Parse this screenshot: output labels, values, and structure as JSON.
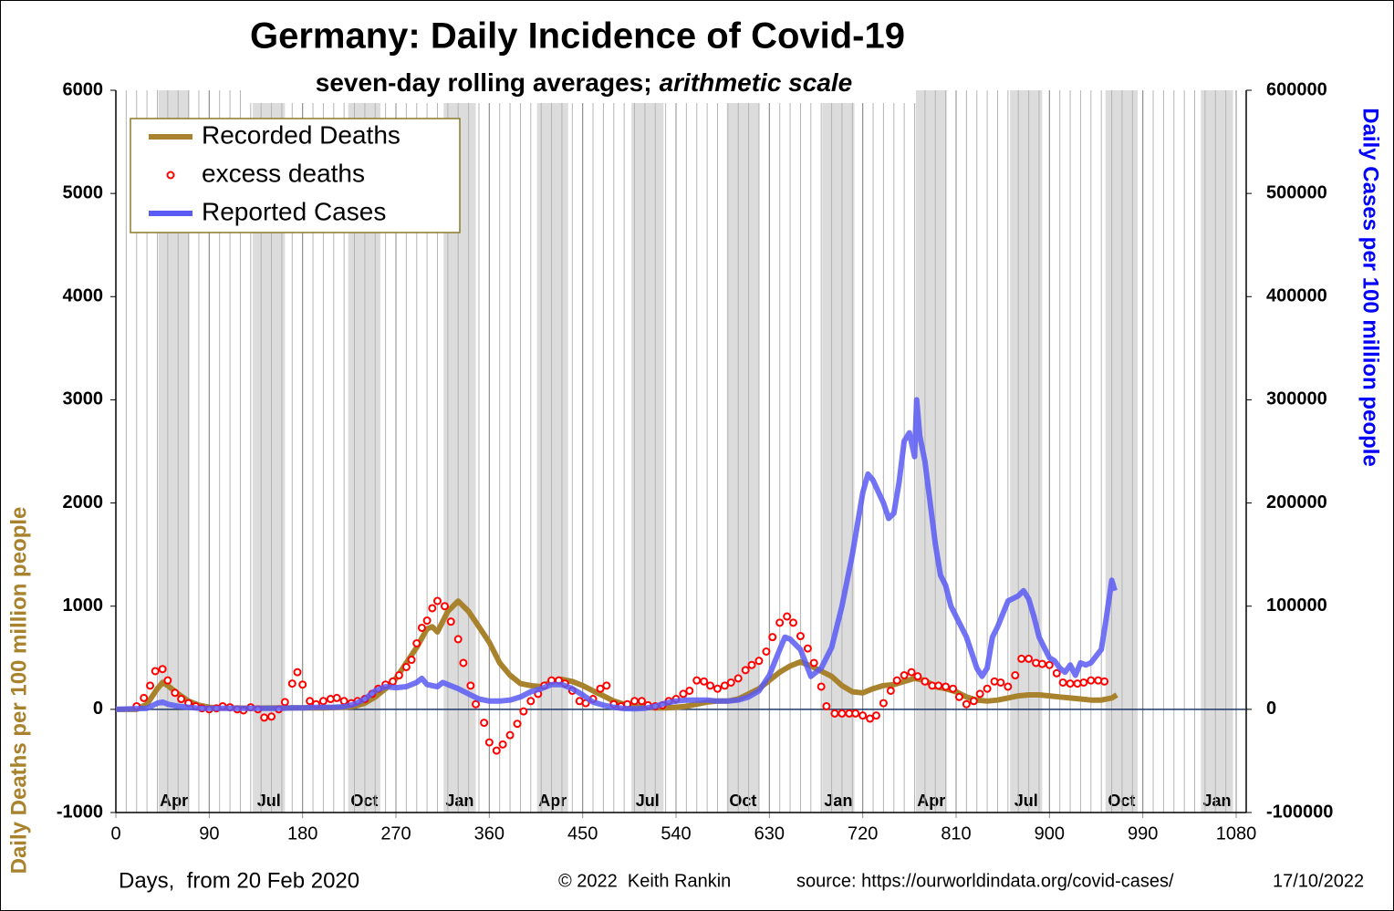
{
  "chart_data": {
    "type": "line",
    "title": "Germany: Daily Incidence of Covid-19",
    "subtitle": [
      "seven-day rolling averages;",
      "arithmetic scale"
    ],
    "x_label": "Days,  from 20 Feb 2020",
    "y_label": "Daily Deaths per 100 million people",
    "y2_label": "Daily Cases per 100 million people",
    "credit": "© 2022  Keith Rankin",
    "source": "source: https://ourworldindata.org/covid-cases/",
    "date": "17/10/2022",
    "xlim": [
      0,
      1080
    ],
    "xticks": [
      0,
      90,
      180,
      270,
      360,
      450,
      540,
      630,
      720,
      810,
      900,
      990,
      1080
    ],
    "x_minor_step": 10,
    "ylim": [
      -1000,
      6000
    ],
    "yticks": [
      -1000,
      0,
      1000,
      2000,
      3000,
      4000,
      5000,
      6000
    ],
    "y2lim": [
      -100000,
      600000
    ],
    "y2ticks": [
      -100000,
      0,
      100000,
      200000,
      300000,
      400000,
      500000,
      600000
    ],
    "legend": "top-left",
    "month_bands": [
      {
        "start": 41,
        "end": 71,
        "label": "Apr"
      },
      {
        "start": 132,
        "end": 163,
        "label": "Jul"
      },
      {
        "start": 224,
        "end": 255,
        "label": "Oct"
      },
      {
        "start": 316,
        "end": 347,
        "label": "Jan"
      },
      {
        "start": 406,
        "end": 436,
        "label": "Apr"
      },
      {
        "start": 497,
        "end": 528,
        "label": "Jul"
      },
      {
        "start": 589,
        "end": 620,
        "label": "Oct"
      },
      {
        "start": 681,
        "end": 712,
        "label": "Jan"
      },
      {
        "start": 771,
        "end": 801,
        "label": "Apr"
      },
      {
        "start": 862,
        "end": 893,
        "label": "Jul"
      },
      {
        "start": 954,
        "end": 985,
        "label": "Oct"
      },
      {
        "start": 1046,
        "end": 1077,
        "label": "Jan"
      }
    ],
    "series": [
      {
        "name": "Recorded Deaths",
        "color": "#a8822d",
        "style": "line",
        "x": [
          0,
          10,
          20,
          30,
          40,
          45,
          50,
          60,
          70,
          80,
          90,
          100,
          120,
          140,
          160,
          180,
          200,
          220,
          230,
          240,
          250,
          260,
          270,
          280,
          290,
          300,
          305,
          310,
          320,
          330,
          340,
          350,
          360,
          370,
          380,
          390,
          400,
          410,
          420,
          430,
          440,
          450,
          460,
          470,
          480,
          490,
          500,
          510,
          520,
          530,
          540,
          550,
          560,
          570,
          580,
          590,
          600,
          610,
          620,
          630,
          640,
          650,
          660,
          670,
          680,
          690,
          700,
          710,
          720,
          730,
          740,
          750,
          760,
          770,
          780,
          790,
          800,
          810,
          820,
          830,
          840,
          850,
          860,
          870,
          880,
          890,
          900,
          910,
          920,
          930,
          940,
          950,
          960,
          965
        ],
        "values": [
          0,
          0,
          0,
          50,
          200,
          260,
          230,
          150,
          80,
          40,
          20,
          15,
          12,
          12,
          15,
          15,
          15,
          20,
          30,
          60,
          120,
          200,
          300,
          450,
          600,
          780,
          800,
          750,
          950,
          1050,
          950,
          800,
          650,
          450,
          330,
          250,
          230,
          220,
          270,
          290,
          270,
          230,
          180,
          130,
          80,
          50,
          30,
          20,
          15,
          15,
          20,
          30,
          50,
          70,
          80,
          80,
          100,
          150,
          200,
          280,
          360,
          420,
          460,
          420,
          370,
          320,
          230,
          170,
          160,
          200,
          230,
          240,
          270,
          300,
          280,
          220,
          200,
          170,
          120,
          90,
          80,
          90,
          110,
          130,
          140,
          140,
          130,
          120,
          110,
          100,
          90,
          90,
          110,
          140
        ]
      },
      {
        "name": "excess deaths",
        "color": "#ff0000",
        "style": "points",
        "x": [
          20,
          27,
          33,
          38,
          45,
          50,
          57,
          63,
          70,
          77,
          83,
          90,
          97,
          103,
          110,
          117,
          123,
          130,
          137,
          143,
          150,
          157,
          163,
          170,
          175,
          180,
          187,
          193,
          200,
          207,
          213,
          220,
          227,
          233,
          240,
          247,
          253,
          260,
          267,
          273,
          280,
          285,
          290,
          295,
          300,
          305,
          310,
          317,
          323,
          330,
          335,
          342,
          347,
          355,
          360,
          367,
          373,
          380,
          387,
          393,
          400,
          407,
          413,
          420,
          427,
          433,
          440,
          447,
          453,
          460,
          467,
          473,
          480,
          487,
          493,
          500,
          507,
          513,
          520,
          527,
          533,
          540,
          547,
          553,
          560,
          567,
          573,
          580,
          587,
          593,
          600,
          607,
          613,
          620,
          627,
          633,
          640,
          647,
          653,
          660,
          667,
          673,
          680,
          685,
          693,
          700,
          707,
          713,
          720,
          727,
          733,
          740,
          747,
          753,
          760,
          767,
          773,
          780,
          787,
          793,
          800,
          807,
          813,
          820,
          827,
          833,
          840,
          847,
          853,
          860,
          867,
          873,
          880,
          887,
          893,
          900,
          907,
          913,
          920,
          927,
          933,
          940,
          947,
          953
        ],
        "values": [
          30,
          110,
          230,
          370,
          390,
          280,
          160,
          100,
          60,
          30,
          10,
          0,
          10,
          30,
          20,
          0,
          -10,
          20,
          0,
          -80,
          -70,
          0,
          70,
          250,
          360,
          240,
          80,
          50,
          80,
          100,
          110,
          80,
          60,
          80,
          100,
          150,
          200,
          240,
          270,
          330,
          410,
          480,
          640,
          790,
          860,
          980,
          1050,
          1000,
          850,
          680,
          450,
          230,
          50,
          -130,
          -320,
          -400,
          -340,
          -250,
          -140,
          -20,
          80,
          150,
          230,
          280,
          280,
          250,
          180,
          80,
          60,
          100,
          200,
          230,
          50,
          30,
          50,
          80,
          80,
          40,
          30,
          40,
          80,
          100,
          150,
          180,
          280,
          270,
          230,
          200,
          230,
          260,
          300,
          380,
          430,
          470,
          560,
          700,
          840,
          900,
          840,
          710,
          590,
          450,
          220,
          30,
          -40,
          -40,
          -40,
          -40,
          -60,
          -90,
          -60,
          60,
          180,
          280,
          330,
          360,
          320,
          270,
          230,
          230,
          220,
          200,
          120,
          50,
          80,
          150,
          200,
          270,
          260,
          220,
          330,
          490,
          490,
          450,
          440,
          430,
          350,
          260,
          250,
          250,
          260,
          280,
          280,
          270
        ]
      },
      {
        "name": "Reported Cases",
        "color": "#5a5af5",
        "style": "line",
        "axis": "y2",
        "x": [
          0,
          30,
          40,
          45,
          50,
          60,
          70,
          80,
          120,
          160,
          170,
          180,
          190,
          200,
          210,
          220,
          230,
          240,
          250,
          260,
          270,
          280,
          290,
          295,
          300,
          310,
          315,
          320,
          330,
          340,
          350,
          360,
          370,
          380,
          390,
          400,
          410,
          420,
          430,
          440,
          450,
          460,
          470,
          480,
          490,
          500,
          510,
          520,
          530,
          540,
          550,
          560,
          570,
          580,
          590,
          600,
          610,
          620,
          630,
          640,
          645,
          650,
          660,
          665,
          670,
          680,
          690,
          700,
          710,
          720,
          725,
          730,
          740,
          745,
          750,
          755,
          760,
          765,
          770,
          772,
          775,
          780,
          785,
          790,
          795,
          800,
          805,
          810,
          820,
          830,
          835,
          840,
          845,
          850,
          860,
          870,
          875,
          880,
          885,
          890,
          895,
          900,
          905,
          910,
          915,
          920,
          925,
          930,
          935,
          940,
          950,
          955,
          960,
          963
        ],
        "values": [
          0,
          1000,
          6000,
          7000,
          5000,
          3000,
          2000,
          1000,
          1000,
          1000,
          1500,
          1500,
          1800,
          2000,
          2000,
          2500,
          5000,
          10000,
          18000,
          22000,
          21000,
          22000,
          26000,
          30000,
          24000,
          22000,
          26000,
          24000,
          20000,
          15000,
          10000,
          8000,
          8000,
          9000,
          12000,
          17000,
          20000,
          24000,
          24000,
          20000,
          14000,
          7000,
          4000,
          2000,
          800,
          600,
          1000,
          3000,
          6000,
          8000,
          9000,
          9000,
          9000,
          8000,
          8000,
          9000,
          12000,
          18000,
          33000,
          58000,
          70000,
          68000,
          58000,
          45000,
          32000,
          40000,
          60000,
          100000,
          150000,
          210000,
          228000,
          222000,
          200000,
          185000,
          190000,
          220000,
          260000,
          268000,
          245000,
          300000,
          265000,
          240000,
          200000,
          160000,
          130000,
          120000,
          100000,
          90000,
          70000,
          40000,
          32000,
          40000,
          70000,
          80000,
          105000,
          110000,
          115000,
          107000,
          90000,
          70000,
          60000,
          50000,
          47000,
          40000,
          36000,
          43000,
          33000,
          45000,
          43000,
          45000,
          58000,
          90000,
          125000,
          115000
        ]
      }
    ]
  }
}
